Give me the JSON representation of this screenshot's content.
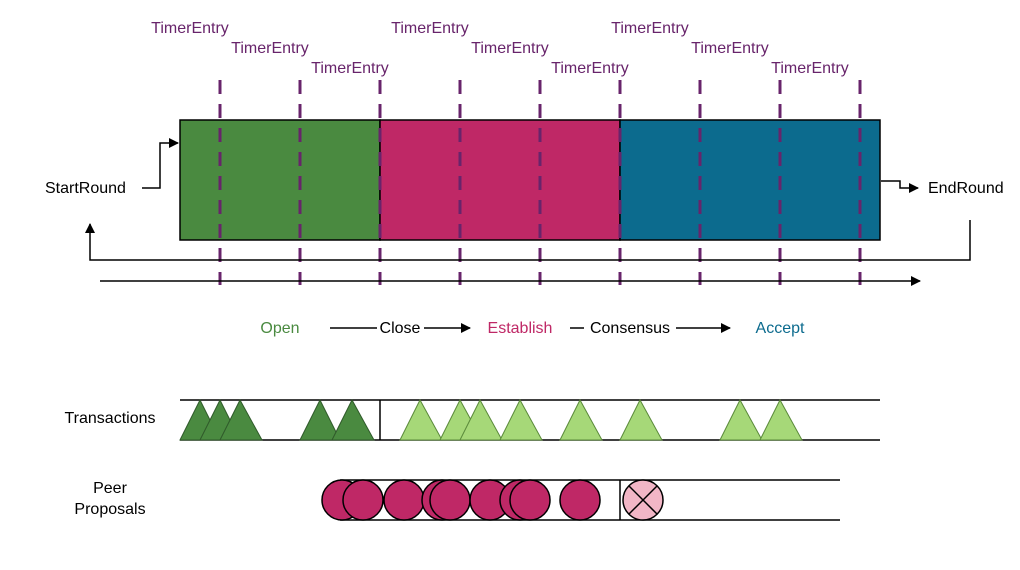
{
  "timer_label": "TimerEntry",
  "round": {
    "start_label": "StartRound",
    "end_label": "EndRound"
  },
  "phases": {
    "open": "Open",
    "close": "Close",
    "establish": "Establish",
    "consensus": "Consensus",
    "accept": "Accept"
  },
  "rows": {
    "transactions": "Transactions",
    "peer_line1": "Peer",
    "peer_line2": "Proposals"
  },
  "colors": {
    "timer": "#68246b",
    "open": "#4a8a40",
    "establish": "#bf2866",
    "accept": "#0c6b8e",
    "tx_dark": "#4a8a40",
    "tx_light": "#a6d878",
    "proposal": "#bf2866",
    "rejected": "#f2b6c6"
  }
}
